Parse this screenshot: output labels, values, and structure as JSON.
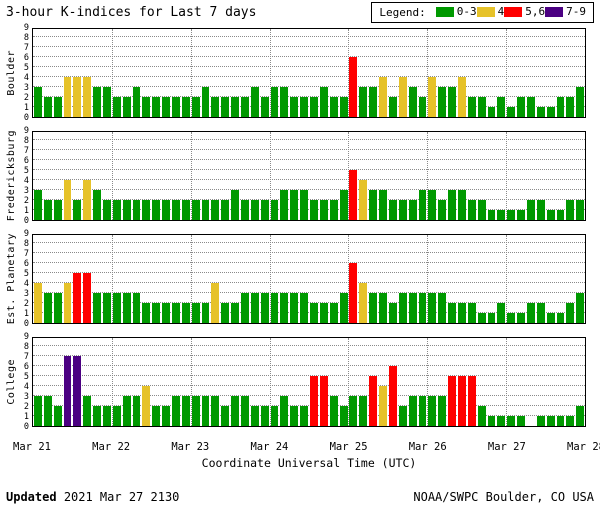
{
  "title": "3-hour K-indices for Last 7 days",
  "legend": {
    "label": "Legend:",
    "items": [
      {
        "label": "0-3",
        "color": "#009900"
      },
      {
        "label": "4",
        "color": "#E6C229"
      },
      {
        "label": "5,6",
        "color": "#FF0000"
      },
      {
        "label": "7-9",
        "color": "#4B0082"
      }
    ]
  },
  "xlabel": "Coordinate Universal Time (UTC)",
  "footer": {
    "updated_label": "Updated",
    "updated_value": "2021 Mar 27 2130",
    "credit": "NOAA/SWPC Boulder, CO USA"
  },
  "chart_data": {
    "type": "bar",
    "bins_per_day": 8,
    "ylim": [
      0,
      9
    ],
    "yticks": [
      0,
      1,
      2,
      3,
      4,
      5,
      6,
      7,
      8,
      9
    ],
    "grid": "dotted",
    "day_labels": [
      "Mar 21",
      "Mar 22",
      "Mar 23",
      "Mar 24",
      "Mar 25",
      "Mar 26",
      "Mar 27",
      "Mar 28"
    ],
    "color_scale": {
      "0-3": "#009900",
      "4": "#E6C229",
      "5-6": "#FF0000",
      "7-9": "#4B0082"
    },
    "stations": [
      {
        "name": "Boulder",
        "values": [
          3,
          2,
          2,
          4,
          4,
          4,
          3,
          3,
          2,
          2,
          3,
          2,
          2,
          2,
          2,
          2,
          2,
          3,
          2,
          2,
          2,
          2,
          3,
          2,
          3,
          3,
          2,
          2,
          2,
          3,
          2,
          2,
          6,
          3,
          3,
          4,
          2,
          4,
          3,
          2,
          4,
          3,
          3,
          4,
          2,
          2,
          1,
          2,
          1,
          2,
          2,
          1,
          1,
          2,
          2,
          3
        ]
      },
      {
        "name": "Fredericksburg",
        "values": [
          3,
          2,
          2,
          4,
          2,
          4,
          3,
          2,
          2,
          2,
          2,
          2,
          2,
          2,
          2,
          2,
          2,
          2,
          2,
          2,
          3,
          2,
          2,
          2,
          2,
          3,
          3,
          3,
          2,
          2,
          2,
          3,
          5,
          4,
          3,
          3,
          2,
          2,
          2,
          3,
          3,
          2,
          3,
          3,
          2,
          2,
          1,
          1,
          1,
          1,
          2,
          2,
          1,
          1,
          2,
          2
        ]
      },
      {
        "name": "Est. Planetary",
        "values": [
          4,
          3,
          3,
          4,
          5,
          5,
          3,
          3,
          3,
          3,
          3,
          2,
          2,
          2,
          2,
          2,
          2,
          2,
          4,
          2,
          2,
          3,
          3,
          3,
          3,
          3,
          3,
          3,
          2,
          2,
          2,
          3,
          6,
          4,
          3,
          3,
          2,
          3,
          3,
          3,
          3,
          3,
          2,
          2,
          2,
          1,
          1,
          2,
          1,
          1,
          2,
          2,
          1,
          1,
          2,
          3
        ]
      },
      {
        "name": "College",
        "values": [
          3,
          3,
          2,
          7,
          7,
          3,
          2,
          2,
          2,
          3,
          3,
          4,
          2,
          2,
          3,
          3,
          3,
          3,
          3,
          2,
          3,
          3,
          2,
          2,
          2,
          3,
          2,
          2,
          5,
          5,
          3,
          2,
          3,
          3,
          5,
          4,
          6,
          2,
          3,
          3,
          3,
          3,
          5,
          5,
          5,
          2,
          1,
          1,
          1,
          1,
          0,
          1,
          1,
          1,
          1,
          2
        ]
      }
    ]
  }
}
